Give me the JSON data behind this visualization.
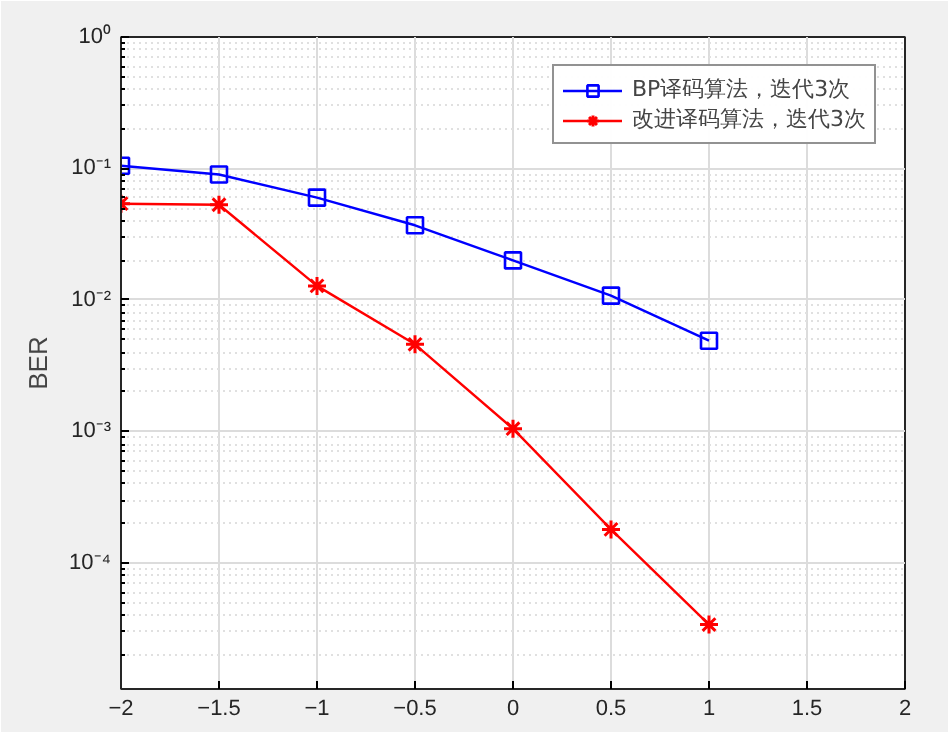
{
  "chart_data": {
    "type": "line",
    "ylabel": "BER",
    "log": "y",
    "grid": true,
    "legend": "top right",
    "x": [
      -2,
      -1.5,
      -1,
      -0.5,
      0,
      0.5,
      1
    ],
    "xlim": [
      -2,
      2
    ],
    "xticks": [
      -2,
      -1.5,
      -1,
      -0.5,
      0,
      0.5,
      1,
      1.5,
      2
    ],
    "ylim": [
      1.1e-05,
      1
    ],
    "yticks": [
      {
        "value": 1,
        "label": "10⁰"
      },
      {
        "value": 0.1,
        "label": "10⁻¹"
      },
      {
        "value": 0.01,
        "label": "10⁻²"
      },
      {
        "value": 0.001,
        "label": "10⁻³"
      },
      {
        "value": 0.0001,
        "label": "10⁻⁴"
      }
    ],
    "line_style": "solid",
    "series": [
      {
        "name": "BP译码算法，迭代3次",
        "color": "#0000ff",
        "marker": "square",
        "values": [
          0.105,
          0.09,
          0.06,
          0.037,
          0.02,
          0.0108,
          0.0049
        ]
      },
      {
        "name": "改进译码算法，迭代3次",
        "color": "#ff0000",
        "marker": "cross",
        "values": [
          0.054,
          0.053,
          0.0128,
          0.0046,
          0.00105,
          0.00018,
          3.4e-05
        ]
      }
    ]
  }
}
